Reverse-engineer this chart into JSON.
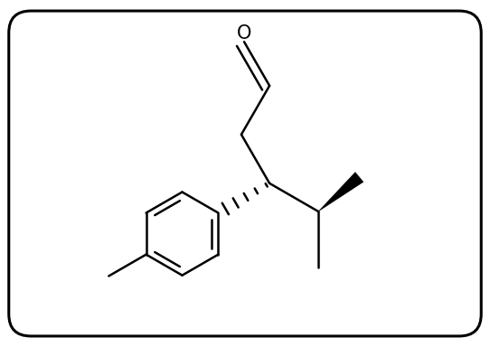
{
  "background_color": "#ffffff",
  "border_color": "#000000",
  "line_color": "#000000",
  "line_width": 1.8,
  "fig_width": 5.42,
  "fig_height": 3.84,
  "dpi": 100
}
